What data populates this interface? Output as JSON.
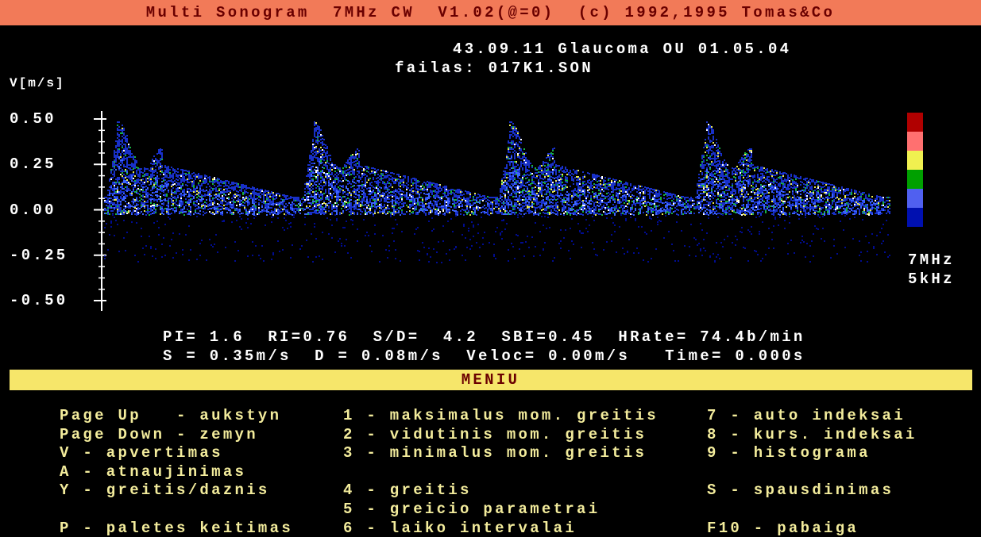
{
  "window": {
    "title": "Multi Sonogram  7MHz CW  V1.02(@=0)  (c) 1992,1995 Tomas&Co"
  },
  "header": {
    "patient": "43.09.11 Glaucoma OU 01.05.04",
    "file": "failas: 017K1.SON"
  },
  "sonogram": {
    "y_axis_label": "V[m/s]",
    "yticks": [
      "0.50",
      "0.25",
      "0.00",
      "-0.25",
      "-0.50"
    ],
    "probe": "7MHz",
    "range": "5kHz"
  },
  "indices": {
    "line1": "PI= 1.6  RI=0.76  S/D=  4.2  SBI=0.45  HRate= 74.4b/min",
    "line2": "S = 0.35m/s  D = 0.08m/s  Veloc= 0.00m/s   Time= 0.000s"
  },
  "menu": {
    "title": "MENIU",
    "columns": [
      [
        "Page Up   - aukstyn",
        "Page Down - zemyn",
        "V - apvertimas",
        "A - atnaujinimas",
        "Y - greitis/daznis",
        "P - paletes keitimas"
      ],
      [
        "1 - maksimalus mom. greitis",
        "2 - vidutinis mom. greitis",
        "3 - minimalus mom. greitis",
        "4 - greitis",
        "5 - greicio parametrai",
        "6 - laiko intervalai"
      ],
      [
        "7 - auto indeksai",
        "8 - kurs. indeksai",
        "9 - histograma",
        "S - spausdinimas",
        "F10 - pabaiga"
      ]
    ]
  }
}
